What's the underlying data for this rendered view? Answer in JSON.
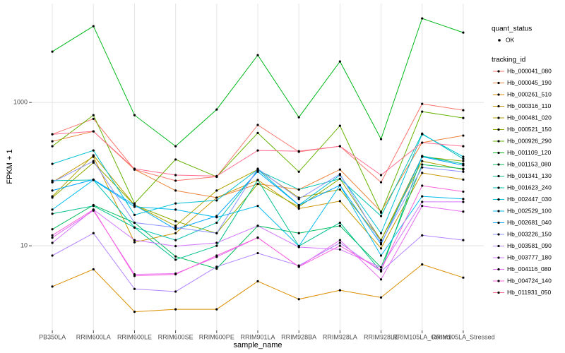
{
  "chart_data": {
    "type": "line",
    "x_label": "sample_name",
    "y_label": "FPKM + 1",
    "y_log_scale": true,
    "grid": true,
    "ylim": [
      0.66,
      24000
    ],
    "yticks": [
      10,
      1000
    ],
    "point_color": "#000000",
    "shape_legend": {
      "title": "quant_status",
      "levels": [
        "OK"
      ]
    },
    "legend_title": "tracking_id",
    "categories": [
      "PB350LA",
      "RRIM600LA",
      "RRIM600LE",
      "RRIM600SE",
      "RRIM600PE",
      "RRIM901LA",
      "RRIM928BA",
      "RRIM928LA",
      "RRIM928LE",
      "RRIM105LA_Control",
      "RRIM105LA_Stressed"
    ],
    "series": [
      {
        "name": "Hb_000041_080",
        "color": "#F8766D",
        "values": [
          360,
          590,
          116,
          81,
          92,
          485,
          205,
          245,
          77,
          955,
          780
        ]
      },
      {
        "name": "Hb_000045_190",
        "color": "#EC8239",
        "values": [
          287,
          395,
          116,
          59,
          47,
          73,
          61,
          116,
          30,
          275,
          345
        ]
      },
      {
        "name": "Hb_000261_510",
        "color": "#DB8E00",
        "values": [
          2.7,
          4.7,
          1.2,
          1.3,
          1.3,
          3.2,
          1.8,
          2.4,
          1.9,
          5.5,
          3.6
        ]
      },
      {
        "name": "Hb_000316_110",
        "color": "#C79800",
        "values": [
          77,
          175,
          11.2,
          15,
          47,
          83,
          33,
          42,
          9.2,
          104,
          84
        ]
      },
      {
        "name": "Hb_000481_020",
        "color": "#AEA200",
        "values": [
          49,
          183,
          37,
          19,
          59,
          116,
          47,
          61,
          12,
          152,
          116
        ]
      },
      {
        "name": "Hb_000521_150",
        "color": "#8FAA00",
        "values": [
          47,
          145,
          37,
          22,
          15,
          73,
          35,
          86,
          12,
          175,
          152
        ]
      },
      {
        "name": "Hb_000926_290",
        "color": "#64B200",
        "values": [
          245,
          665,
          39,
          160,
          92,
          375,
          108,
          473,
          29,
          745,
          607
        ]
      },
      {
        "name": "Hb_001109_120",
        "color": "#00B81B",
        "values": [
          5120,
          11600,
          665,
          245,
          797,
          4570,
          621,
          3730,
          308,
          14860,
          9440
        ]
      },
      {
        "name": "Hb_001153_080",
        "color": "#00BD5C",
        "values": [
          17,
          37,
          21,
          7.1,
          4.8,
          19,
          15,
          19,
          5.0,
          136,
          119
        ]
      },
      {
        "name": "Hb_001341_130",
        "color": "#00C08D",
        "values": [
          28,
          36,
          18,
          6.4,
          10,
          83,
          9.9,
          21,
          4.4,
          179,
          139
        ]
      },
      {
        "name": "Hb_001623_240",
        "color": "#00C1B2",
        "values": [
          81,
          83,
          18,
          12,
          21,
          113,
          61,
          86,
          26,
          368,
          163
        ]
      },
      {
        "name": "Hb_002447_030",
        "color": "#00BFD4",
        "values": [
          139,
          214,
          27,
          39,
          43,
          116,
          37,
          97,
          15,
          360,
          175
        ]
      },
      {
        "name": "Hb_002529_100",
        "color": "#00BAEE",
        "values": [
          32,
          83,
          35,
          32,
          25,
          36,
          9.9,
          70,
          7.3,
          49,
          45
        ]
      },
      {
        "name": "Hb_002681_040",
        "color": "#00A5FF",
        "values": [
          59,
          84,
          37,
          17,
          26,
          108,
          37,
          70,
          10.5,
          175,
          133
        ]
      },
      {
        "name": "Hb_003226_150",
        "color": "#8B93FF",
        "values": [
          77,
          152,
          21,
          18,
          15,
          119,
          45,
          100,
          11,
          124,
          108
        ]
      },
      {
        "name": "Hb_003581_090",
        "color": "#B385FF",
        "values": [
          7.3,
          15,
          2.5,
          2.3,
          5.1,
          7.9,
          5.3,
          11,
          4.4,
          14,
          12
        ]
      },
      {
        "name": "Hb_003777_180",
        "color": "#D277FF",
        "values": [
          11,
          32,
          12,
          9.9,
          11,
          19,
          9.6,
          8.9,
          5.0,
          41,
          41
        ]
      },
      {
        "name": "Hb_004116_080",
        "color": "#E76BF3",
        "values": [
          13,
          31,
          4.0,
          4.1,
          7.0,
          13,
          5.1,
          12,
          3.4,
          36,
          30
        ]
      },
      {
        "name": "Hb_004724_140",
        "color": "#FA62DB",
        "values": [
          14,
          32,
          3.8,
          4.0,
          7.3,
          13,
          5.1,
          10,
          4.6,
          69,
          57
        ]
      },
      {
        "name": "Hb_011931_050",
        "color": "#FF6C91",
        "values": [
          360,
          395,
          119,
          97,
          94,
          214,
          209,
          245,
          97,
          275,
          245
        ]
      }
    ]
  }
}
